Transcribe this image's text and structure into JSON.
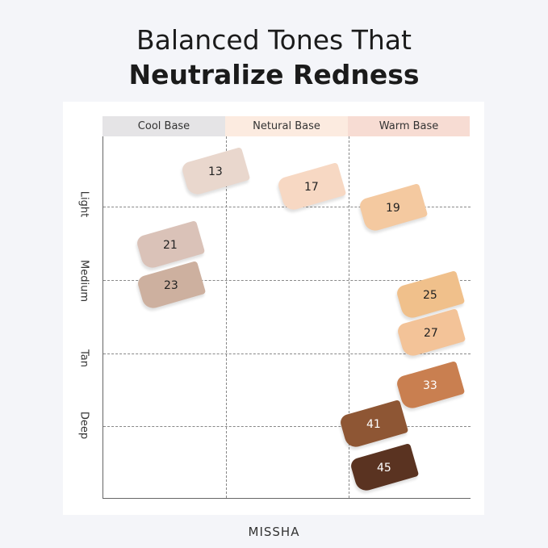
{
  "title_line1": "Balanced Tones That",
  "title_line2": "Neutralize Redness",
  "columns": [
    {
      "label": "Cool Base",
      "color": "#e5e4e6"
    },
    {
      "label": "Netural Base",
      "color": "#fcebe0"
    },
    {
      "label": "Warm Base",
      "color": "#f7dcd3"
    }
  ],
  "rows": [
    "Light",
    "Medium",
    "Tan",
    "Deep"
  ],
  "shades": [
    {
      "label": "13",
      "color": "#e9d7cd",
      "text": "#222"
    },
    {
      "label": "17",
      "color": "#f7d8c3",
      "text": "#222"
    },
    {
      "label": "19",
      "color": "#f4c9a0",
      "text": "#222"
    },
    {
      "label": "21",
      "color": "#dac2b8",
      "text": "#222"
    },
    {
      "label": "23",
      "color": "#cdb09f",
      "text": "#222"
    },
    {
      "label": "25",
      "color": "#f0c08b",
      "text": "#222"
    },
    {
      "label": "27",
      "color": "#f3c398",
      "text": "#222"
    },
    {
      "label": "33",
      "color": "#c97f50",
      "text": "#fff"
    },
    {
      "label": "41",
      "color": "#8e5634",
      "text": "#fff"
    },
    {
      "label": "45",
      "color": "#5a3321",
      "text": "#fff"
    }
  ],
  "brand": "MISSHA"
}
